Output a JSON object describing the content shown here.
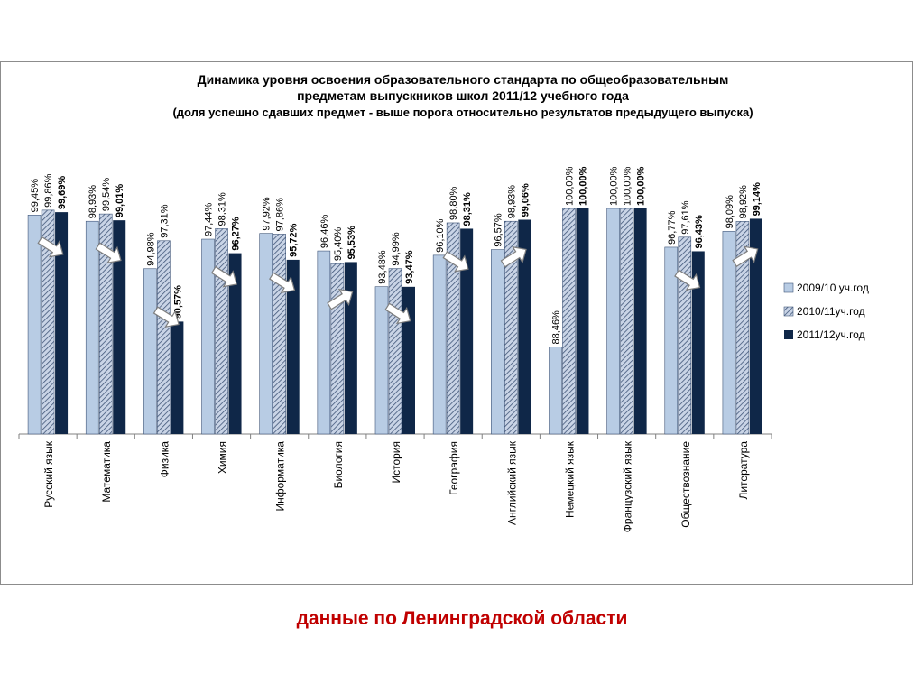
{
  "colors": {
    "series_2009": "#b8cce4",
    "series_2010": "#8da2c2",
    "series_2011": "#0f2748",
    "arrow_fill": "#ffffff",
    "arrow_stroke": "#7f7f7f",
    "footer": "#c00000",
    "frame_border": "#8c8c8c"
  },
  "chart_data": {
    "type": "bar",
    "title": [
      "Динамика уровня освоения образовательного стандарта по общеобразовательным",
      "предметам выпускников школ 2011/12 учебного года"
    ],
    "subtitle": "(доля успешно сдавших предмет - выше порога относительно результатов предыдущего выпуска)",
    "xlabel": "",
    "ylabel": "",
    "legend_position": "right",
    "grid": false,
    "categories": [
      "Русский язык",
      "Математика",
      "Физика",
      "Химия",
      "Информатика",
      "Биология",
      "История",
      "География",
      "Английский язык",
      "Немецкий язык",
      "Французский язык",
      "Обществознание",
      "Литература"
    ],
    "series": [
      {
        "name": "2009/10 уч.год",
        "values": [
          99.45,
          98.93,
          94.98,
          97.44,
          97.92,
          96.46,
          93.48,
          96.1,
          96.57,
          88.46,
          100.0,
          96.77,
          98.09
        ],
        "labels": [
          "99,45%",
          "98,93%",
          "94,98%",
          "97,44%",
          "97,92%",
          "96,46%",
          "93,48%",
          "96,10%",
          "96,57%",
          "88,46%",
          "100,00%",
          "96,77%",
          "98,09%"
        ]
      },
      {
        "name": "2010/11уч.год",
        "values": [
          99.86,
          99.54,
          97.31,
          98.31,
          97.86,
          95.4,
          94.99,
          98.8,
          98.93,
          100.0,
          100.0,
          97.61,
          98.92
        ],
        "labels": [
          "99,86%",
          "99,54%",
          "97,31%",
          "98,31%",
          "97,86%",
          "95,40%",
          "94,99%",
          "98,80%",
          "98,93%",
          "100,00%",
          "100,00%",
          "97,61%",
          "98,92%"
        ]
      },
      {
        "name": "2011/12уч.год",
        "values": [
          99.69,
          99.01,
          90.57,
          96.27,
          95.72,
          95.53,
          93.47,
          98.31,
          99.06,
          100.0,
          100.0,
          96.43,
          99.14
        ],
        "labels": [
          "99,69%",
          "99,01%",
          "90,57%",
          "96,27%",
          "95,72%",
          "95,53%",
          "93,47%",
          "98,31%",
          "99,06%",
          "100,00%",
          "100,00%",
          "96,43%",
          "99,14%"
        ]
      }
    ],
    "trend_arrows": [
      "down",
      "down",
      "down",
      "down",
      "down",
      "up",
      "down",
      "down",
      "up",
      "none",
      "none",
      "down",
      "up"
    ]
  },
  "footer": {
    "caption": "данные по Ленинградской области"
  }
}
